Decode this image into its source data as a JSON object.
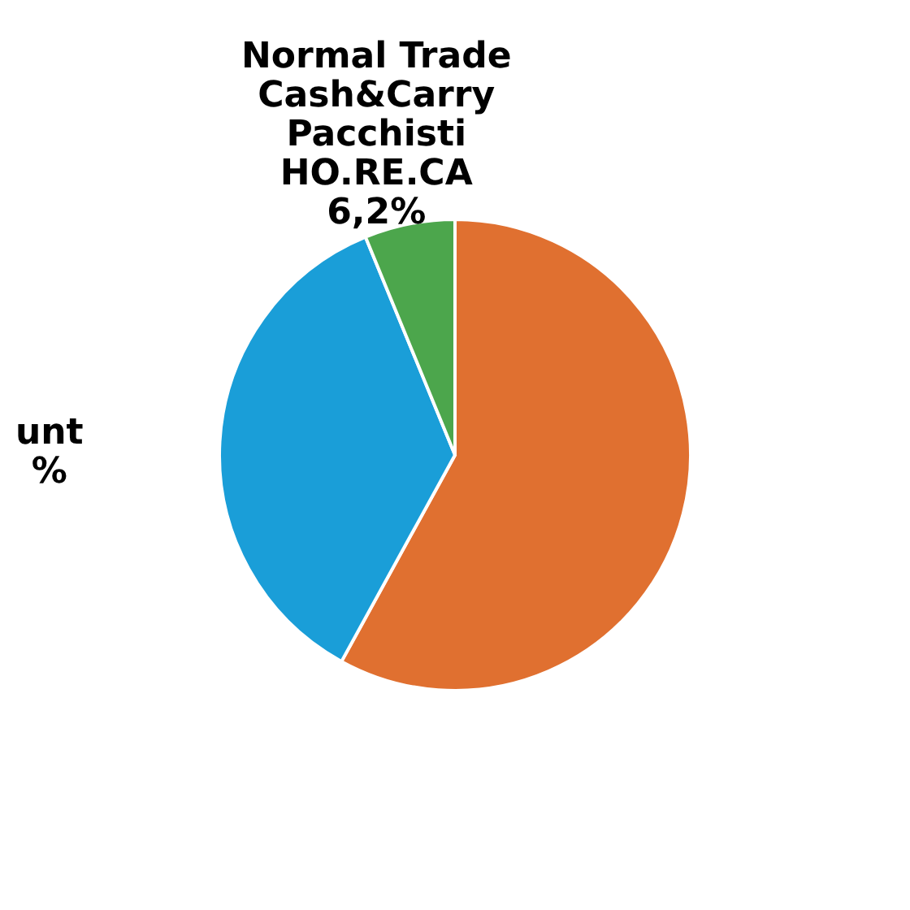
{
  "chart_data": {
    "type": "pie",
    "categories": [
      null,
      "unt",
      "Normal Trade\nCash&Carry\nPacchisti\nHO.RE.CA"
    ],
    "values": [
      58.0,
      35.8,
      6.2
    ],
    "colors": [
      "#e07030",
      "#1a9ed8",
      "#4ca64c"
    ],
    "value_labels": [
      null,
      "%",
      "6,2%"
    ]
  }
}
